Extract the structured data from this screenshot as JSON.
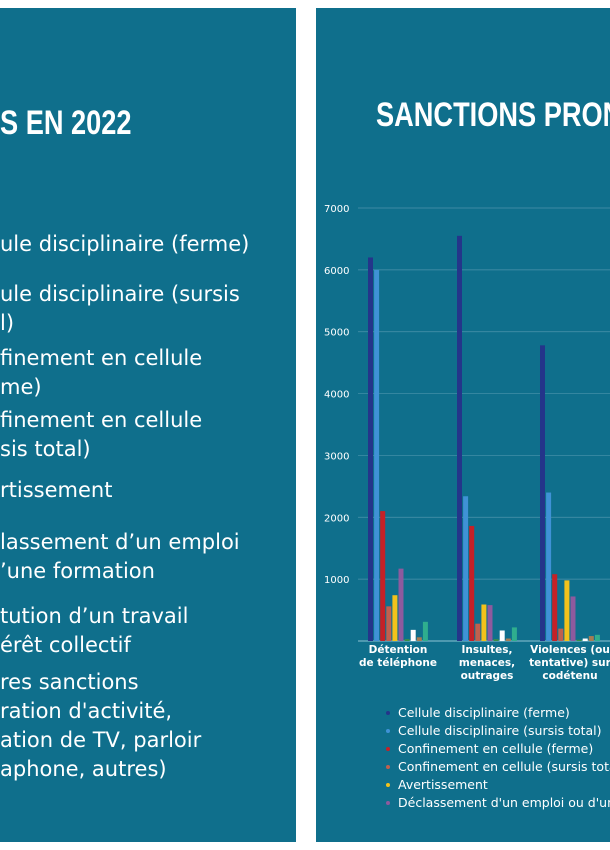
{
  "left_panel": {
    "title": "S EN 2022",
    "items": [
      [
        "ule disciplinaire (ferme)"
      ],
      [
        "ule disciplinaire (sursis",
        "l)"
      ],
      [
        "finement en cellule",
        "me)"
      ],
      [
        "finement en cellule",
        "sis total)"
      ],
      [
        "rtissement"
      ],
      [
        "lassement d’un emploi",
        "’une formation"
      ],
      [
        "tution d’un travail",
        "érêt collectif"
      ],
      [
        "res sanctions",
        "ration d'activité,",
        "ation de TV, parloir",
        "aphone, autres)"
      ]
    ]
  },
  "right_panel": {
    "title": "SANCTIONS PRONON"
  },
  "chart_data": {
    "type": "bar",
    "ylim": [
      0,
      7000
    ],
    "yticks": [
      1000,
      2000,
      3000,
      4000,
      5000,
      6000,
      7000
    ],
    "categories": [
      [
        "Détention",
        "de téléphone"
      ],
      [
        "Insultes,",
        "menaces,",
        "outrages"
      ],
      [
        "Violences (ou",
        "tentative) sur",
        "codétenu"
      ]
    ],
    "series": [
      {
        "name": "Cellule disciplinaire (ferme)",
        "color": "#24358a",
        "values": [
          6200,
          6550,
          4780
        ]
      },
      {
        "name": "Cellule disciplinaire (sursis total)",
        "color": "#3f92d6",
        "values": [
          6000,
          2340,
          2400
        ]
      },
      {
        "name": "Confinement en cellule (ferme)",
        "color": "#c42127",
        "values": [
          2100,
          1860,
          1080
        ]
      },
      {
        "name": "Confinement en cellule (sursis total)",
        "color": "#c0604e",
        "values": [
          560,
          280,
          200
        ]
      },
      {
        "name": "Avertissement",
        "color": "#f3c21b",
        "values": [
          740,
          590,
          980
        ]
      },
      {
        "name": "Déclassement d'un emploi ou d'une",
        "color": "#8e5a9e",
        "values": [
          1170,
          580,
          720
        ]
      },
      {
        "name": "",
        "color": "#3a8f45",
        "values": [
          30,
          30,
          20
        ]
      },
      {
        "name": "",
        "color": "#ffffff",
        "values": [
          180,
          170,
          40
        ]
      },
      {
        "name": "",
        "color": "#a67c52",
        "values": [
          60,
          40,
          80
        ]
      },
      {
        "name": "",
        "color": "#2fae8e",
        "values": [
          310,
          220,
          100
        ]
      }
    ]
  }
}
